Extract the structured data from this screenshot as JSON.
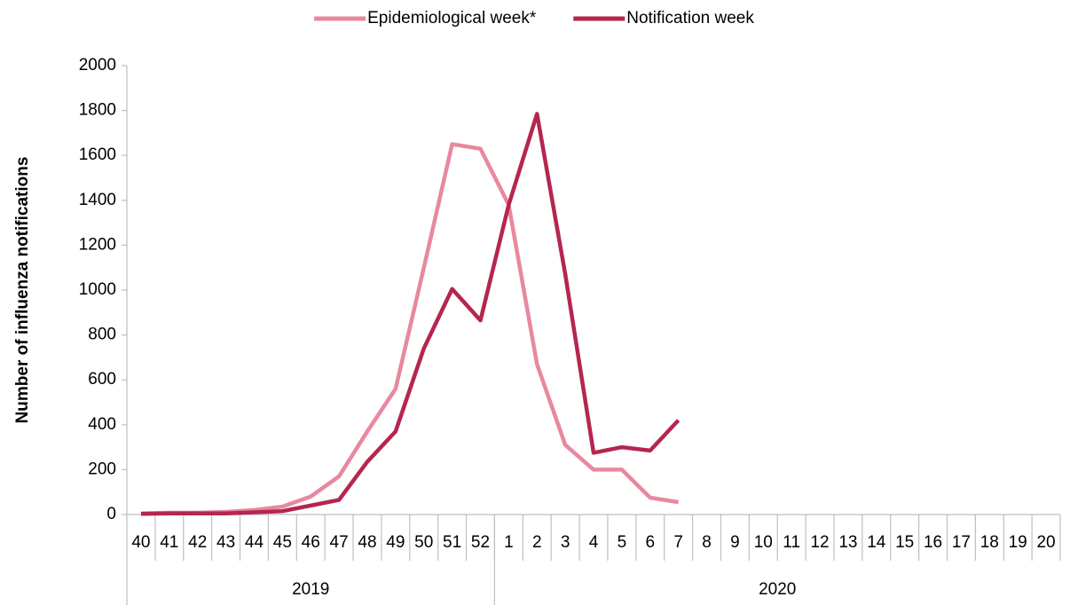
{
  "chart_data": {
    "type": "line",
    "y_label": "Number of influenza notifications",
    "category_groups": [
      {
        "label": "2019",
        "categories": [
          "40",
          "41",
          "42",
          "43",
          "44",
          "45",
          "46",
          "47",
          "48",
          "49",
          "50",
          "51",
          "52"
        ]
      },
      {
        "label": "2020",
        "categories": [
          "1",
          "2",
          "3",
          "4",
          "5",
          "6",
          "7",
          "8",
          "9",
          "10",
          "11",
          "12",
          "13",
          "14",
          "15",
          "16",
          "17",
          "18",
          "19",
          "20"
        ]
      }
    ],
    "series": [
      {
        "name": "Epidemiological week*",
        "color": "#e8889e",
        "values": [
          5,
          8,
          8,
          12,
          20,
          35,
          80,
          170,
          370,
          560,
          1100,
          1650,
          1630,
          1380,
          670,
          310,
          200,
          200,
          75,
          55,
          null,
          null,
          null,
          null,
          null,
          null,
          null,
          null,
          null,
          null,
          null,
          null,
          null
        ]
      },
      {
        "name": "Notification week",
        "color": "#b5264f",
        "values": [
          3,
          5,
          5,
          5,
          10,
          15,
          40,
          65,
          235,
          370,
          740,
          1005,
          865,
          1380,
          1785,
          1070,
          275,
          300,
          285,
          420,
          null,
          null,
          null,
          null,
          null,
          null,
          null,
          null,
          null,
          null,
          null,
          null,
          null
        ]
      }
    ],
    "ylim": [
      0,
      2000
    ],
    "yticks": [
      0,
      200,
      400,
      600,
      800,
      1000,
      1200,
      1400,
      1600,
      1800,
      2000
    ],
    "grid": false,
    "legend": "top"
  }
}
